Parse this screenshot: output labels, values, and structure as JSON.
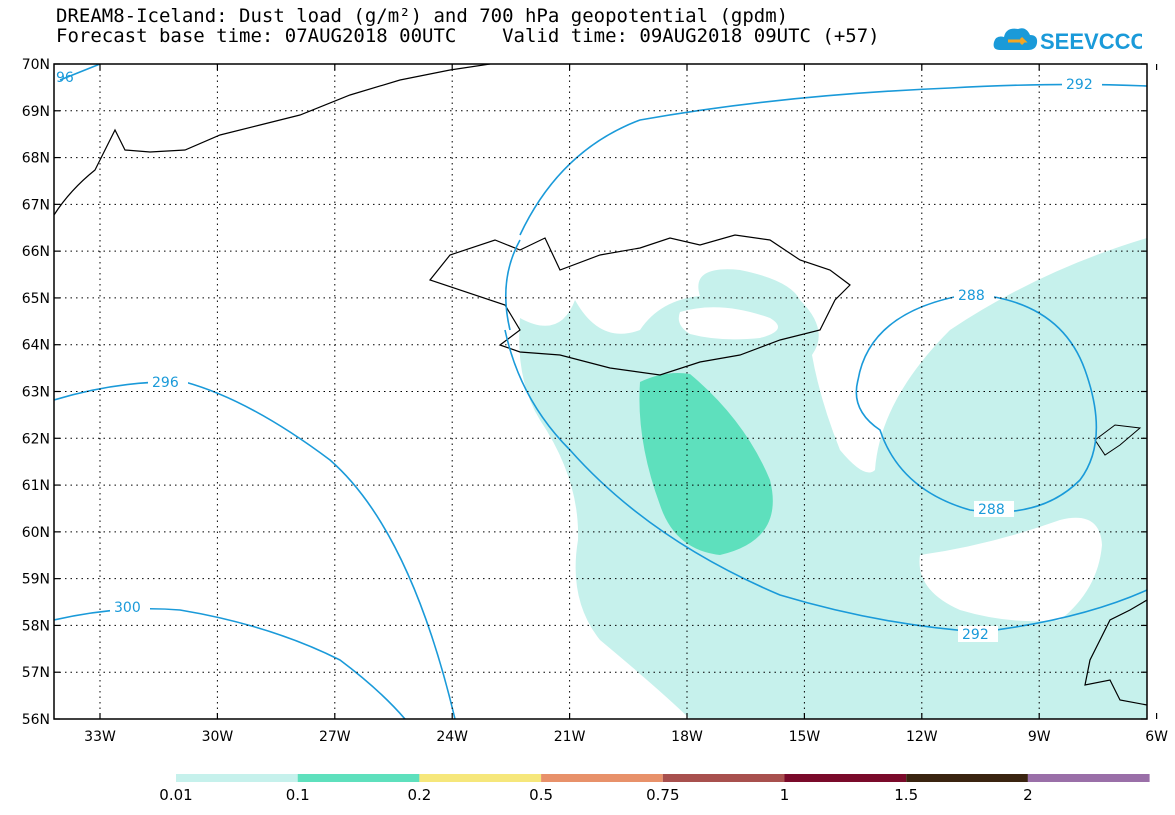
{
  "header": {
    "title_line1": "DREAM8-Iceland: Dust load (g/m²) and 700 hPa geopotential (gpdm)",
    "title_line2": "Forecast base time: 07AUG2018 00UTC    Valid time: 09AUG2018 09UTC (+57)"
  },
  "logo": {
    "text": "SEEVCCC",
    "icon": "cloud-arrow-logo",
    "color": "#1a9ad9"
  },
  "map": {
    "lat_labels": [
      "70N",
      "69N",
      "68N",
      "67N",
      "66N",
      "65N",
      "64N",
      "63N",
      "62N",
      "61N",
      "60N",
      "59N",
      "58N",
      "57N",
      "56N"
    ],
    "lon_labels": [
      "33W",
      "30W",
      "27W",
      "24W",
      "21W",
      "18W",
      "15W",
      "12W",
      "9W",
      "6W"
    ],
    "contour_labels": {
      "c296_left_edge": "96",
      "c292_top": "292",
      "c296": "296",
      "c288_top": "288",
      "c288_bottom": "288",
      "c300": "300",
      "c292_bottom": "292"
    },
    "contour_color": "#1a9ad9",
    "dust_colors": {
      "low": "#c6f1ec",
      "mid": "#5ee0bd"
    }
  },
  "legend": {
    "labels": [
      "0.01",
      "0.1",
      "0.2",
      "0.5",
      "0.75",
      "1",
      "1.5",
      "2"
    ],
    "colors": [
      "#c6f1ec",
      "#5ee0bd",
      "#f6e77b",
      "#e8916a",
      "#a8504e",
      "#7a0a2a",
      "#3a2410",
      "#9a6fa8"
    ]
  }
}
